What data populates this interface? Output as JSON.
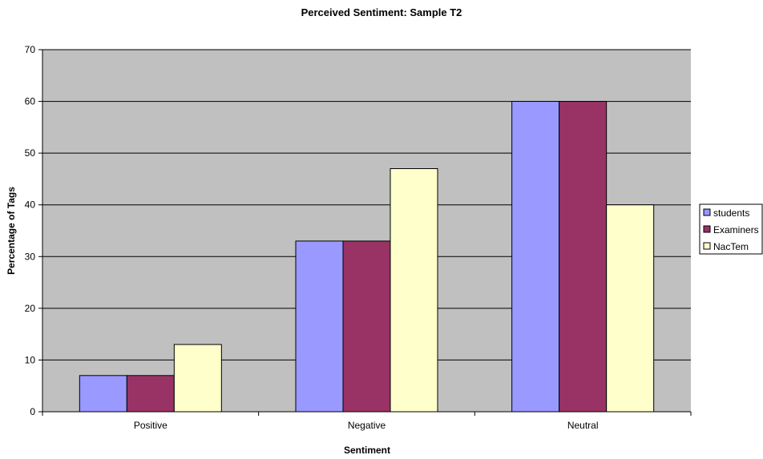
{
  "chart_data": {
    "type": "bar",
    "title": "Perceived Sentiment: Sample T2",
    "xlabel": "Sentiment",
    "ylabel": "Percentage of Tags",
    "categories": [
      "Positive",
      "Negative",
      "Neutral"
    ],
    "series": [
      {
        "name": "students",
        "values": [
          7,
          33,
          60
        ],
        "color": "#9999ff"
      },
      {
        "name": "Examiners",
        "values": [
          7,
          33,
          60
        ],
        "color": "#993366"
      },
      {
        "name": "NacTem",
        "values": [
          13,
          47,
          40
        ],
        "color": "#ffffcc"
      }
    ],
    "ylim": [
      0,
      70
    ],
    "yticks": [
      0,
      10,
      20,
      30,
      40,
      50,
      60,
      70
    ],
    "grid": true,
    "legend_position": "right",
    "plot_background": "#c0c0c0"
  }
}
